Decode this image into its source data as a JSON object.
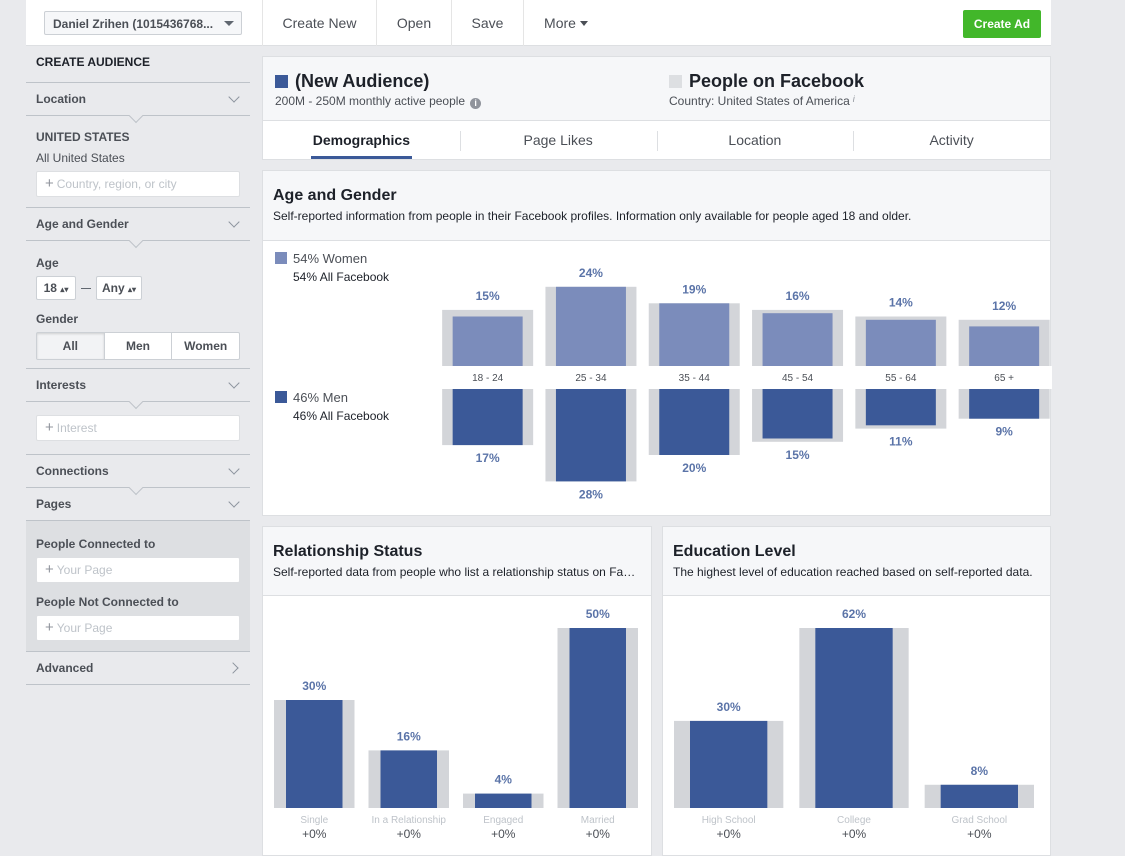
{
  "topbar": {
    "account": "Daniel Zrihen (1015436768...",
    "create_new": "Create New",
    "open": "Open",
    "save": "Save",
    "more": "More",
    "create_ad": "Create Ad"
  },
  "sidebar": {
    "title": "CREATE AUDIENCE",
    "location": {
      "label": "Location",
      "country": "UNITED STATES",
      "scope": "All United States",
      "placeholder": "Country, region, or city"
    },
    "age_gender": {
      "label": "Age and Gender",
      "age_label": "Age",
      "age_min": "18",
      "age_max": "Any",
      "gender_label": "Gender",
      "gender_options": [
        "All",
        "Men",
        "Women"
      ]
    },
    "interests": {
      "label": "Interests",
      "placeholder": "Interest"
    },
    "connections": "Connections",
    "pages": {
      "label": "Pages",
      "connected_label": "People Connected to",
      "connected_placeholder": "Your Page",
      "not_connected_label": "People Not Connected to",
      "not_connected_placeholder": "Your Page"
    },
    "advanced": "Advanced"
  },
  "header": {
    "audience_title": "(New Audience)",
    "audience_sub": "200M - 250M monthly active people",
    "fb_title": "People on Facebook",
    "fb_sub": "Country: United States of America",
    "tabs": [
      "Demographics",
      "Page Likes",
      "Location",
      "Activity"
    ],
    "active_tab": "Demographics"
  },
  "colors": {
    "women": "#7b8cbb",
    "men": "#3b5998",
    "bench": "#d3d5d9",
    "fb_square": "#dddfe2",
    "green": "#42b72a"
  },
  "age_gender": {
    "title": "Age and Gender",
    "description": "Self-reported information from people in their Facebook profiles. Information only available for people aged 18 and older.",
    "women_label": "54% Women",
    "women_sub": "54% All Facebook",
    "men_label": "46% Men",
    "men_sub": "46% All Facebook"
  },
  "relationship": {
    "title": "Relationship Status",
    "description": "Self-reported data from people who list a relationship status on Facebook."
  },
  "education": {
    "title": "Education Level",
    "description": "The highest level of education reached based on self-reported data."
  },
  "chart_data": [
    {
      "type": "bar",
      "id": "age_gender",
      "categories": [
        "18 - 24",
        "25 - 34",
        "35 - 44",
        "45 - 54",
        "55 - 64",
        "65 +"
      ],
      "series": [
        {
          "name": "Women",
          "values": [
            15,
            24,
            19,
            16,
            14,
            12
          ],
          "labels": [
            "15%",
            "24%",
            "19%",
            "16%",
            "14%",
            "12%"
          ],
          "benchmark": [
            17,
            24,
            19,
            17,
            15,
            14
          ]
        },
        {
          "name": "Men",
          "values": [
            17,
            28,
            20,
            15,
            11,
            9
          ],
          "labels": [
            "17%",
            "28%",
            "20%",
            "15%",
            "11%",
            "9%"
          ],
          "benchmark": [
            17,
            28,
            20,
            16,
            12,
            9
          ]
        }
      ]
    },
    {
      "type": "bar",
      "id": "relationship",
      "categories": [
        "Single",
        "In a Relationship",
        "Engaged",
        "Married"
      ],
      "values": [
        30,
        16,
        4,
        50
      ],
      "labels": [
        "30%",
        "16%",
        "4%",
        "50%"
      ],
      "benchmark": [
        30,
        16,
        4,
        50
      ],
      "changes": [
        "+0%",
        "+0%",
        "+0%",
        "+0%"
      ],
      "ylim": [
        0,
        50
      ]
    },
    {
      "type": "bar",
      "id": "education",
      "categories": [
        "High School",
        "College",
        "Grad School"
      ],
      "values": [
        30,
        62,
        8
      ],
      "labels": [
        "30%",
        "62%",
        "8%"
      ],
      "benchmark": [
        30,
        62,
        8
      ],
      "changes": [
        "+0%",
        "+0%",
        "+0%"
      ],
      "ylim": [
        0,
        62
      ]
    }
  ]
}
